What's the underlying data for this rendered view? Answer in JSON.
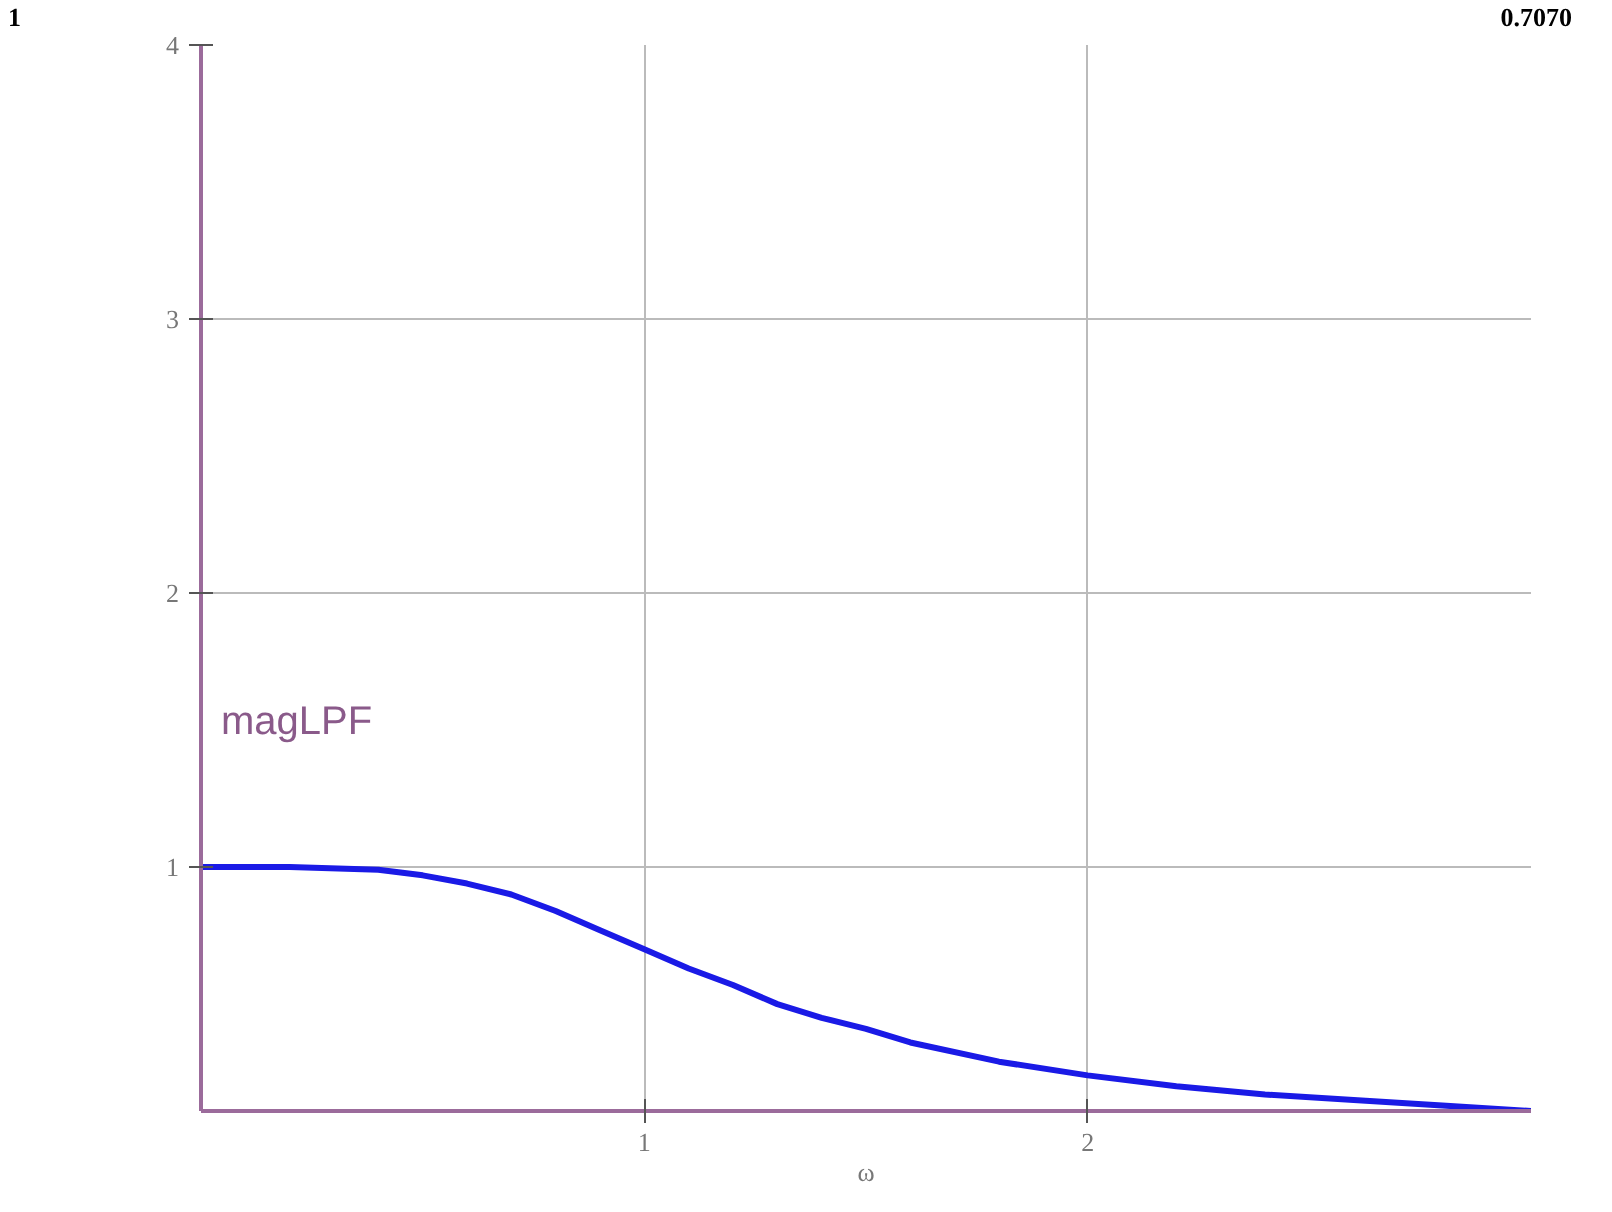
{
  "chart_data": {
    "type": "line",
    "xlabel": "ω",
    "ylabel": "magLPF",
    "annotations": [
      "1",
      "0.7070"
    ],
    "x": [
      0,
      0.2,
      0.4,
      0.5,
      0.6,
      0.7,
      0.8,
      0.9,
      1.0,
      1.1,
      1.2,
      1.3,
      1.4,
      1.5,
      1.6,
      1.8,
      2.0,
      2.2,
      2.4,
      2.6,
      2.8,
      3.0
    ],
    "series": [
      {
        "color": "#1a1ae6",
        "values": [
          1.0,
          1.0,
          0.99,
          0.97,
          0.94,
          0.9,
          0.84,
          0.77,
          0.7,
          0.63,
          0.57,
          0.5,
          0.45,
          0.41,
          0.36,
          0.29,
          0.24,
          0.2,
          0.17,
          0.15,
          0.13,
          0.11
        ]
      }
    ],
    "xlim": [
      0,
      3
    ],
    "ylim": [
      0.11,
      4
    ],
    "xticks": [
      1,
      2
    ],
    "yticks": [
      1,
      2,
      3,
      4
    ],
    "grid": true,
    "line_style": "solid",
    "marker": "none"
  }
}
